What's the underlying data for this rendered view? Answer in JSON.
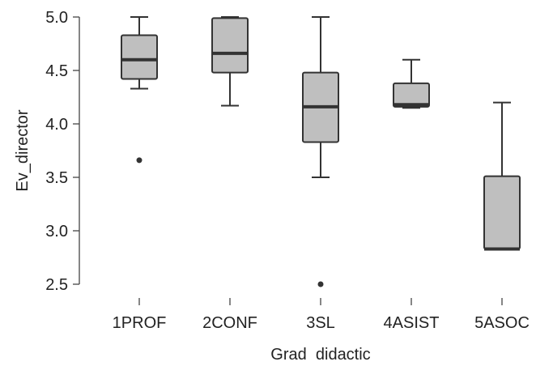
{
  "chart_data": {
    "type": "boxplot",
    "title": "",
    "xlabel": "Grad  didactic",
    "ylabel": "Ev_director",
    "ylim": [
      2.5,
      5.0
    ],
    "yticks": [
      "2.5",
      "3.0",
      "3.5",
      "4.0",
      "4.5",
      "5.0"
    ],
    "grid": false,
    "box_color": "#bfbfbf",
    "line_color": "#333333",
    "categories": [
      "1PROF",
      "2CONF",
      "3SL",
      "4ASIST",
      "5ASOC"
    ],
    "boxes": [
      {
        "category": "1PROF",
        "whisker_low": 4.33,
        "q1": 4.42,
        "median": 4.6,
        "q3": 4.83,
        "whisker_high": 5.0,
        "outliers": [
          3.66
        ]
      },
      {
        "category": "2CONF",
        "whisker_low": 4.17,
        "q1": 4.48,
        "median": 4.66,
        "q3": 4.99,
        "whisker_high": 5.0,
        "outliers": []
      },
      {
        "category": "3SL",
        "whisker_low": 3.5,
        "q1": 3.83,
        "median": 4.16,
        "q3": 4.48,
        "whisker_high": 5.0,
        "outliers": [
          2.5
        ]
      },
      {
        "category": "4ASIST",
        "whisker_low": 4.15,
        "q1": 4.16,
        "median": 4.18,
        "q3": 4.38,
        "whisker_high": 4.6,
        "outliers": []
      },
      {
        "category": "5ASOC",
        "whisker_low": 2.83,
        "q1": 2.83,
        "median": 2.83,
        "q3": 3.51,
        "whisker_high": 4.2,
        "outliers": []
      }
    ]
  }
}
